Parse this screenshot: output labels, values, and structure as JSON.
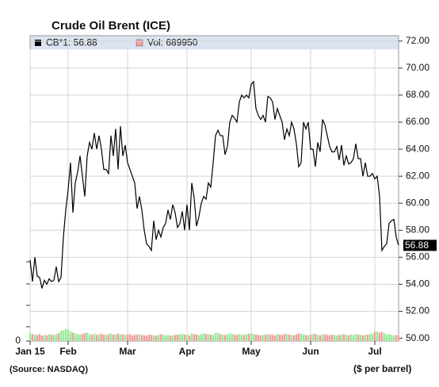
{
  "chart_data": {
    "type": "line",
    "title": "Crude Oil Brent (ICE)",
    "source": "(Source: NASDAQ)",
    "y_unit_label": "($ per barrel)",
    "categories": [
      "Jan 15",
      null,
      null,
      null,
      null,
      null,
      null,
      null,
      null,
      null,
      null,
      null,
      null,
      null,
      null,
      null,
      "Feb",
      null,
      null,
      null,
      null,
      null,
      null,
      null,
      null,
      null,
      null,
      null,
      null,
      null,
      null,
      null,
      null,
      null,
      null,
      null,
      null,
      null,
      null,
      null,
      null,
      "Mar",
      null,
      null,
      null,
      null,
      null,
      null,
      null,
      null,
      null,
      null,
      null,
      null,
      null,
      null,
      null,
      null,
      null,
      null,
      null,
      null,
      null,
      null,
      null,
      null,
      "Apr",
      null,
      null,
      null,
      null,
      null,
      null,
      null,
      null,
      null,
      null,
      null,
      null,
      null,
      null,
      null,
      null,
      null,
      null,
      null,
      null,
      null,
      null,
      null,
      null,
      null,
      null,
      "May",
      null,
      null,
      null,
      null,
      null,
      null,
      null,
      null,
      null,
      null,
      null,
      null,
      null,
      null,
      null,
      null,
      null,
      null,
      null,
      null,
      null,
      null,
      null,
      null,
      "Jun",
      null,
      null,
      null,
      null,
      null,
      null,
      null,
      null,
      null,
      null,
      null,
      null,
      null,
      null,
      null,
      null,
      null,
      null,
      null,
      null,
      null,
      null,
      null,
      null,
      null,
      null,
      "Jul",
      null,
      null,
      null,
      null,
      null,
      null,
      null,
      null,
      null,
      null
    ],
    "series": [
      {
        "name": "CB*1: 56.88",
        "color": "#000000",
        "values": [
          55.8,
          54.2,
          56.0,
          54.6,
          54.5,
          53.7,
          54.3,
          54.0,
          54.4,
          54.2,
          54.3,
          55.3,
          54.2,
          54.5,
          57.5,
          59.5,
          61.0,
          63.0,
          59.3,
          61.5,
          62.3,
          63.5,
          62.0,
          60.5,
          63.5,
          64.5,
          64.0,
          65.2,
          64.0,
          65.0,
          64.0,
          62.5,
          62.5,
          62.2,
          65.0,
          63.5,
          65.5,
          62.5,
          65.7,
          63.5,
          64.3,
          63.0,
          62.5,
          62.0,
          61.5,
          59.6,
          60.5,
          59.5,
          58.0,
          57.0,
          56.8,
          56.5,
          58.7,
          57.3,
          58.0,
          57.5,
          58.2,
          58.5,
          59.5,
          58.8,
          59.9,
          59.3,
          58.2,
          58.5,
          59.4,
          58.0,
          59.9,
          58.0,
          61.5,
          60.4,
          58.3,
          59.0,
          60.0,
          60.5,
          60.3,
          61.5,
          61.2,
          63.0,
          65.0,
          65.4,
          65.0,
          65.0,
          63.6,
          64.2,
          66.0,
          66.5,
          66.3,
          66.0,
          67.5,
          68.0,
          67.8,
          68.0,
          67.8,
          68.8,
          69.0,
          67.0,
          66.5,
          66.2,
          66.5,
          66.0,
          67.9,
          67.8,
          67.5,
          66.2,
          67.0,
          66.5,
          66.0,
          64.7,
          65.5,
          65.0,
          66.0,
          65.5,
          64.4,
          62.7,
          63.0,
          66.0,
          65.5,
          66.0,
          64.0,
          64.0,
          62.7,
          64.5,
          63.8,
          66.2,
          65.8,
          65.0,
          64.2,
          63.8,
          63.8,
          64.2,
          63.2,
          64.3,
          62.8,
          63.5,
          62.9,
          63.0,
          63.3,
          64.4,
          63.3,
          63.3,
          62.0,
          63.0,
          62.0,
          62.0,
          62.2,
          61.8,
          62.0,
          60.5,
          56.5,
          56.8,
          57.0,
          58.5,
          58.7,
          58.8,
          57.5,
          56.88
        ]
      },
      {
        "name": "Vol: 689950",
        "color": "#f4a0a0",
        "up_color": "#98ec98",
        "axis": "y2",
        "values": [
          1100000,
          900000,
          850000,
          800000,
          950000,
          700000,
          800000,
          750000,
          900000,
          850000,
          800000,
          950000,
          1000000,
          1300000,
          1400000,
          1600000,
          1500000,
          1250000,
          1100000,
          1000000,
          900000,
          850000,
          950000,
          1050000,
          1100000,
          900000,
          850000,
          1000000,
          800000,
          900000,
          950000,
          850000,
          800000,
          900000,
          1000000,
          850000,
          900000,
          950000,
          850000,
          900000,
          800000,
          850000,
          900000,
          750000,
          800000,
          850000,
          900000,
          800000,
          750000,
          700000,
          850000,
          800000,
          750000,
          700000,
          800000,
          900000,
          850000,
          750000,
          800000,
          700000,
          750000,
          800000,
          850000,
          900000,
          950000,
          850000,
          800000,
          750000,
          1000000,
          900000,
          850000,
          800000,
          900000,
          1000000,
          950000,
          900000,
          850000,
          800000,
          1050000,
          1100000,
          900000,
          850000,
          800000,
          900000,
          1000000,
          950000,
          850000,
          800000,
          900000,
          850000,
          800000,
          900000,
          950000,
          1000000,
          900000,
          850000,
          800000,
          750000,
          800000,
          850000,
          900000,
          850000,
          800000,
          750000,
          900000,
          850000,
          800000,
          950000,
          900000,
          850000,
          800000,
          750000,
          900000,
          1000000,
          950000,
          850000,
          800000,
          750000,
          850000,
          900000,
          950000,
          800000,
          750000,
          850000,
          900000,
          800000,
          750000,
          850000,
          800000,
          750000,
          800000,
          850000,
          900000,
          800000,
          750000,
          850000,
          800000,
          900000,
          850000,
          800000,
          750000,
          800000,
          850000,
          900000,
          950000,
          1200000,
          1250000,
          1100000,
          1200000,
          1000000,
          850000,
          900000,
          800000,
          750000,
          800000,
          689950
        ]
      }
    ],
    "ylim": [
      49.8,
      72.4
    ],
    "yticks": [
      {
        "value": 50,
        "label": "50.00"
      },
      {
        "value": 52,
        "label": "52.00"
      },
      {
        "value": 54,
        "label": "54.00"
      },
      {
        "value": 56,
        "label": "56.00"
      },
      {
        "value": 58,
        "label": "58.00"
      },
      {
        "value": 60,
        "label": "60.00"
      },
      {
        "value": 62,
        "label": "62.00"
      },
      {
        "value": 64,
        "label": "64.00"
      },
      {
        "value": 66,
        "label": "66.00"
      },
      {
        "value": 68,
        "label": "68.00"
      },
      {
        "value": 70,
        "label": "70.00"
      },
      {
        "value": 72,
        "label": "72.00"
      }
    ],
    "y2lim": [
      0,
      40000000
    ],
    "y2ticks": [
      0
    ],
    "grid": true
  }
}
